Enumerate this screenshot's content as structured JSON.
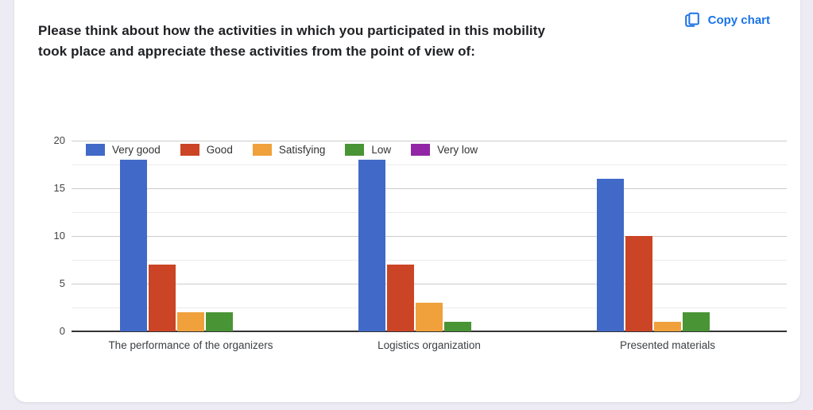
{
  "header": {
    "title_line1": "Please think about how the activities in which you participated in this mobility",
    "title_line2": "took place and appreciate these activities from the point of view of:",
    "copy_chart_label": "Copy chart",
    "copy_chart_color": "#1A73E8"
  },
  "chart_data": {
    "type": "bar",
    "title": "Please think about how the activities in which you participated in this mobility took place and appreciate these activities from the point of view of:",
    "categories": [
      "The performance of the organizers",
      "Logistics organization",
      "Presented materials"
    ],
    "series": [
      {
        "name": "Very good",
        "color": "#4169C8",
        "values": [
          18,
          18,
          16
        ]
      },
      {
        "name": "Good",
        "color": "#CB4425",
        "values": [
          7,
          7,
          10
        ]
      },
      {
        "name": "Satisfying",
        "color": "#F0A13C",
        "values": [
          2,
          3,
          1
        ]
      },
      {
        "name": "Low",
        "color": "#499434",
        "values": [
          2,
          1,
          2
        ]
      },
      {
        "name": "Very low",
        "color": "#9225A5",
        "values": [
          0,
          0,
          0
        ]
      }
    ],
    "xlabel": "",
    "ylabel": "",
    "ylim": [
      0,
      20
    ],
    "yticks": [
      0,
      5,
      10,
      15,
      20
    ],
    "minor_gridlines": true,
    "grid": true,
    "legend_position": "top-left-inside"
  },
  "colors": {
    "page_background": "#EDECF5",
    "card_background": "#FFFFFF",
    "baseline": "#333333",
    "major_gridline": "#CCCCCC",
    "minor_gridline": "#EBEBEB"
  }
}
